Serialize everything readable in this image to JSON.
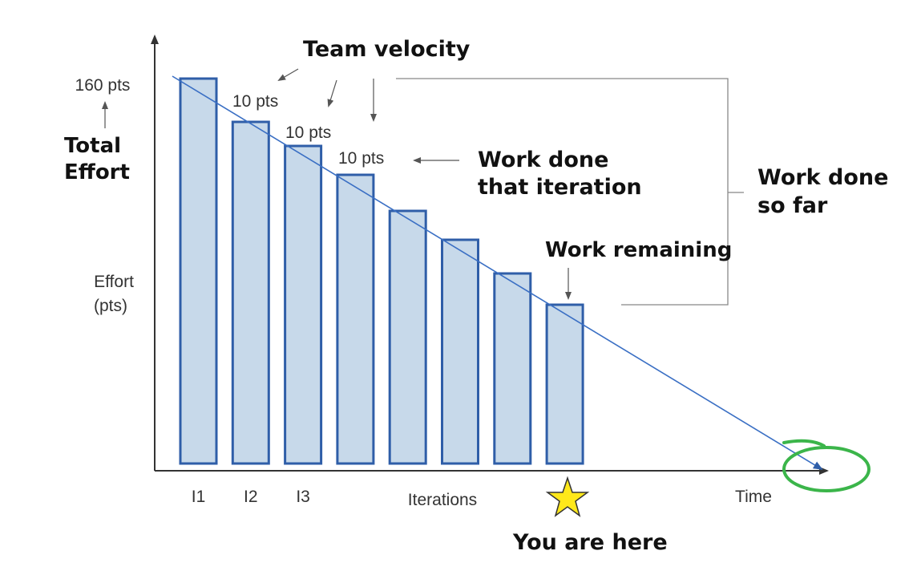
{
  "chart_data": {
    "type": "bar",
    "categories": [
      "I1",
      "I2",
      "I3",
      "",
      "",
      "",
      "",
      ""
    ],
    "values": [
      160,
      142,
      132,
      120,
      105,
      93,
      79,
      66
    ],
    "ylim": [
      0,
      170
    ],
    "xlabel": "Iterations",
    "ylabel": "Effort (pts)",
    "time_label": "Time",
    "total_label": "160 pts",
    "velocity_labels": [
      "10 pts",
      "10 pts",
      "10 pts"
    ],
    "grid": false,
    "colors": {
      "bar_fill": "#c7d9ea",
      "bar_stroke": "#2f5ea8",
      "trend_line": "#3a6fc4",
      "axis": "#333333",
      "bracket": "#888888",
      "star": "#ffe81a",
      "circle": "#3bb54a"
    }
  },
  "annotations": {
    "team_velocity": "Team velocity",
    "total_effort_1": "Total",
    "total_effort_2": "Effort",
    "work_done_iteration_1": "Work done",
    "work_done_iteration_2": "that iteration",
    "work_done_so_far_1": "Work done",
    "work_done_so_far_2": "so far",
    "work_remaining": "Work remaining",
    "you_are_here": "You are here"
  },
  "icons": {
    "current_marker": "star-icon",
    "completion": "circle-highlight"
  }
}
